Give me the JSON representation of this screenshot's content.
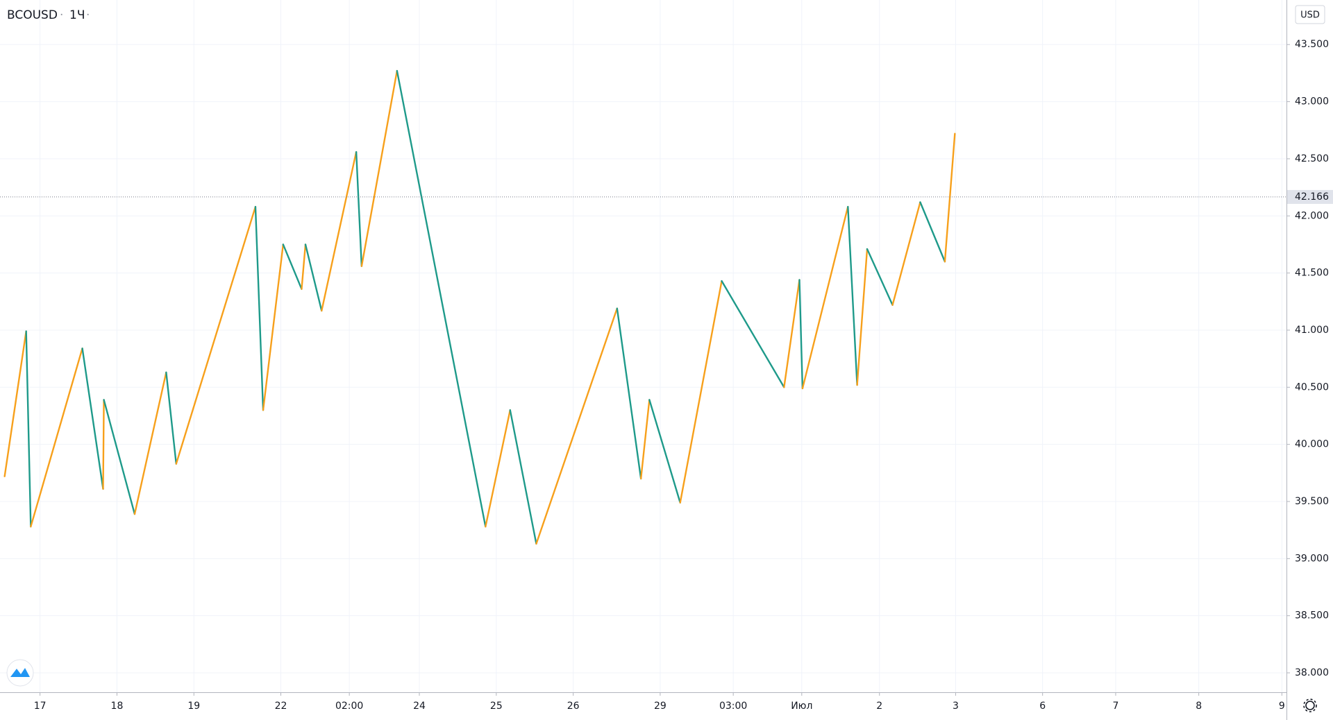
{
  "chart_data": {
    "type": "zigzag",
    "symbol": "BCOUSD",
    "interval": "1Ч",
    "currency": "USD",
    "up_color": "#f7a01b",
    "down_color": "#1e9a8a",
    "x": [
      -0.46,
      -0.18,
      -0.12,
      0.55,
      0.82,
      0.83,
      1.23,
      1.64,
      1.77,
      2.8,
      2.9,
      3.16,
      3.4,
      3.45,
      3.66,
      4.11,
      4.18,
      4.64,
      5.79,
      6.11,
      6.45,
      7.5,
      7.81,
      7.92,
      8.32,
      8.86,
      9.67,
      9.87,
      9.91,
      10.5,
      10.62,
      10.75,
      11.08,
      11.44,
      11.76,
      11.89
    ],
    "values": [
      39.72,
      40.99,
      39.28,
      40.84,
      39.61,
      40.39,
      39.39,
      40.63,
      39.83,
      42.08,
      40.3,
      41.75,
      41.36,
      41.75,
      41.17,
      42.56,
      41.56,
      43.27,
      39.28,
      40.3,
      39.13,
      41.19,
      39.7,
      40.39,
      39.49,
      41.43,
      40.5,
      41.44,
      40.49,
      42.08,
      40.52,
      41.71,
      41.22,
      42.12,
      41.6,
      42.72
    ],
    "last_price": 42.166,
    "xlim": [
      -0.52,
      16.2
    ],
    "ylim": [
      37.83,
      43.89
    ],
    "xticks": [
      {
        "value": 0,
        "label": "17"
      },
      {
        "value": 1.0,
        "label": "18"
      },
      {
        "value": 2.0,
        "label": "19"
      },
      {
        "value": 3.13,
        "label": "22"
      },
      {
        "value": 4.02,
        "label": "02:00"
      },
      {
        "value": 4.93,
        "label": "24"
      },
      {
        "value": 5.93,
        "label": "25"
      },
      {
        "value": 6.93,
        "label": "26"
      },
      {
        "value": 8.06,
        "label": "29"
      },
      {
        "value": 9.01,
        "label": "03:00"
      },
      {
        "value": 9.9,
        "label": "Июл"
      },
      {
        "value": 10.91,
        "label": "2"
      },
      {
        "value": 11.9,
        "label": "3"
      },
      {
        "value": 13.03,
        "label": "6"
      },
      {
        "value": 13.98,
        "label": "7"
      },
      {
        "value": 15.06,
        "label": "8"
      },
      {
        "value": 16.14,
        "label": "9"
      }
    ],
    "yticks": [
      {
        "value": 38,
        "label": "38.000"
      },
      {
        "value": 38.5,
        "label": "38.500"
      },
      {
        "value": 39,
        "label": "39.000"
      },
      {
        "value": 39.5,
        "label": "39.500"
      },
      {
        "value": 40,
        "label": "40.000"
      },
      {
        "value": 40.5,
        "label": "40.500"
      },
      {
        "value": 41,
        "label": "41.000"
      },
      {
        "value": 41.5,
        "label": "41.500"
      },
      {
        "value": 42,
        "label": "42.000"
      },
      {
        "value": 42.5,
        "label": "42.500"
      },
      {
        "value": 43,
        "label": "43.000"
      },
      {
        "value": 43.5,
        "label": "43.500"
      }
    ]
  }
}
